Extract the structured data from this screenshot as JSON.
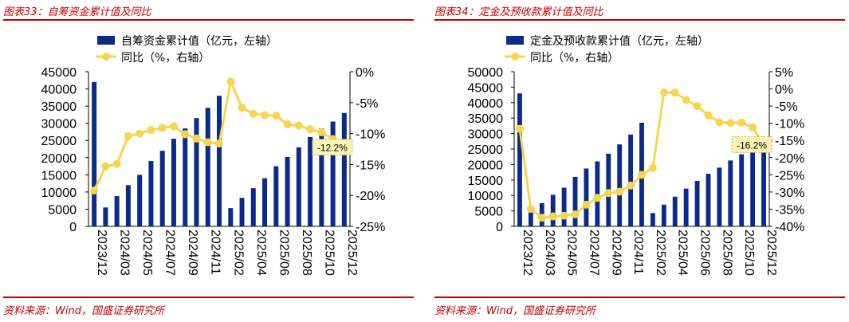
{
  "colors": {
    "title": "#c00000",
    "bar": "#0a2a8c",
    "line": "#f7d54e",
    "callout_bg": "#fdf3b4"
  },
  "chart_data": [
    {
      "type": "bar+line",
      "title": "图表33：自筹资金累计值及同比",
      "source": "资料来源：Wind，国盛证券研究所",
      "legend": {
        "bar": "自筹资金累计值（亿元，左轴）",
        "line": "同比（%，右轴）"
      },
      "x_labels": [
        "2023/12",
        "2024/03",
        "2024/05",
        "2024/07",
        "2024/09",
        "2024/11",
        "2025/02",
        "2025/04",
        "2025/06",
        "2025/08",
        "2025/10",
        "2025/12"
      ],
      "left_ticks": [
        "45000",
        "40000",
        "35000",
        "30000",
        "25000",
        "20000",
        "15000",
        "10000",
        "5000",
        "0"
      ],
      "right_ticks": [
        "0%",
        "-5%",
        "-10%",
        "-15%",
        "-20%",
        "-25%"
      ],
      "left_range": [
        0,
        45000
      ],
      "right_range": [
        -25,
        0
      ],
      "bars": [
        42000,
        5500,
        8800,
        12000,
        15000,
        19000,
        22000,
        25500,
        28500,
        31500,
        34500,
        38000,
        5300,
        8300,
        11100,
        14000,
        17500,
        20200,
        23000,
        26000,
        28500,
        30500,
        33000
      ],
      "yoy": [
        -19.2,
        -15.3,
        -14.9,
        -10.4,
        -10.0,
        -9.4,
        -9.1,
        -8.8,
        -10.1,
        -10.8,
        -11.4,
        -11.6,
        -1.6,
        -5.8,
        -6.8,
        -7.0,
        -7.1,
        -8.5,
        -8.7,
        -9.3,
        -9.8,
        -10.9,
        -12.2
      ],
      "callout": "-12.2%"
    },
    {
      "type": "bar+line",
      "title": "图表34：定金及预收款累计值及同比",
      "source": "资料来源：Wind，国盛证券研究所",
      "legend": {
        "bar": "定金及预收款累计值（亿元，左轴）",
        "line": "同比（%，右轴）"
      },
      "x_labels": [
        "2023/12",
        "2024/03",
        "2024/05",
        "2024/07",
        "2024/09",
        "2024/11",
        "2025/02",
        "2025/04",
        "2025/06",
        "2025/08",
        "2025/10",
        "2025/12"
      ],
      "left_ticks": [
        "50000",
        "45000",
        "40000",
        "35000",
        "30000",
        "25000",
        "20000",
        "15000",
        "10000",
        "5000",
        "0"
      ],
      "right_ticks": [
        "5%",
        "0%",
        "-5%",
        "-10%",
        "-15%",
        "-20%",
        "-25%",
        "-30%",
        "-35%",
        "-40%"
      ],
      "left_range": [
        0,
        50000
      ],
      "right_range": [
        -40,
        5
      ],
      "bars": [
        43000,
        4500,
        7500,
        10200,
        12500,
        16000,
        18700,
        21000,
        23500,
        26500,
        29700,
        33500,
        4300,
        7000,
        9600,
        12200,
        14700,
        17000,
        19000,
        21300,
        23300,
        25300,
        27000
      ],
      "yoy": [
        -11.6,
        -34.9,
        -37.5,
        -37.1,
        -36.9,
        -36.5,
        -33.7,
        -31.7,
        -30.3,
        -29.9,
        -28.1,
        -25.0,
        -23.0,
        -1.0,
        -1.1,
        -3.2,
        -5.0,
        -7.7,
        -9.7,
        -9.9,
        -9.8,
        -11.2,
        -16.2
      ],
      "callout": "-16.2%"
    }
  ]
}
